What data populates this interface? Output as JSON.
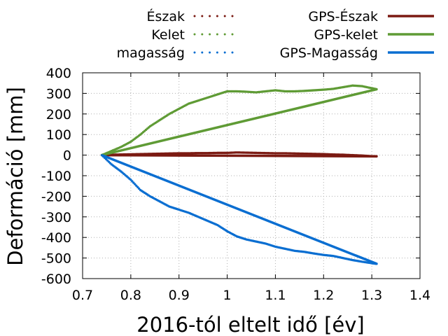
{
  "chart_data": {
    "type": "line",
    "title": "",
    "xlabel": "2016-tól eltelt idő [év]",
    "ylabel": "Deformáció [mm]",
    "xlim": [
      0.7,
      1.4
    ],
    "ylim": [
      -600,
      400
    ],
    "xticks": [
      0.7,
      0.8,
      0.9,
      1,
      1.1,
      1.2,
      1.3,
      1.4
    ],
    "yticks": [
      -600,
      -500,
      -400,
      -300,
      -200,
      -100,
      0,
      100,
      200,
      300,
      400
    ],
    "grid": true,
    "legend_position": "top",
    "series": [
      {
        "name": "Észak",
        "style": "dotted",
        "color": "#7b1a12",
        "x": [
          0.74,
          0.76,
          0.78,
          0.8,
          0.82,
          0.84,
          0.86,
          0.88,
          0.9,
          0.92,
          0.94,
          0.96,
          0.98,
          1.0,
          1.02,
          1.04,
          1.06,
          1.08,
          1.1,
          1.12,
          1.14,
          1.16,
          1.18,
          1.2,
          1.22,
          1.24,
          1.26,
          1.28,
          1.3,
          1.31
        ],
        "y": [
          0,
          2,
          3,
          4,
          5,
          6,
          7,
          8,
          9,
          9,
          10,
          10,
          11,
          11,
          13,
          12,
          11,
          10,
          9,
          9,
          8,
          7,
          6,
          5,
          3,
          2,
          0,
          -2,
          -5,
          -6
        ]
      },
      {
        "name": "Kelet",
        "style": "dotted",
        "color": "#5f9b35",
        "x": [
          0.74,
          0.76,
          0.78,
          0.8,
          0.82,
          0.84,
          0.86,
          0.88,
          0.9,
          0.92,
          0.94,
          0.96,
          0.98,
          1.0,
          1.02,
          1.04,
          1.06,
          1.08,
          1.1,
          1.12,
          1.14,
          1.16,
          1.18,
          1.2,
          1.22,
          1.24,
          1.26,
          1.28,
          1.3,
          1.31
        ],
        "y": [
          0,
          20,
          40,
          65,
          100,
          140,
          170,
          200,
          225,
          250,
          265,
          280,
          295,
          310,
          310,
          308,
          305,
          310,
          315,
          310,
          310,
          312,
          315,
          318,
          322,
          330,
          338,
          335,
          325,
          320
        ]
      },
      {
        "name": "magasság",
        "style": "dotted",
        "color": "#0a6ed1",
        "x": [
          0.74,
          0.76,
          0.78,
          0.8,
          0.82,
          0.84,
          0.86,
          0.88,
          0.9,
          0.92,
          0.94,
          0.96,
          0.98,
          1.0,
          1.02,
          1.04,
          1.06,
          1.08,
          1.1,
          1.12,
          1.14,
          1.16,
          1.18,
          1.2,
          1.22,
          1.24,
          1.26,
          1.28,
          1.3,
          1.31
        ],
        "y": [
          0,
          -45,
          -80,
          -120,
          -170,
          -200,
          -225,
          -250,
          -265,
          -280,
          -300,
          -320,
          -340,
          -370,
          -395,
          -410,
          -420,
          -430,
          -445,
          -455,
          -465,
          -470,
          -478,
          -485,
          -490,
          -500,
          -510,
          -518,
          -525,
          -528
        ]
      },
      {
        "name": "GPS-Észak",
        "style": "solid",
        "color": "#7b1a12",
        "x": [
          0.74,
          1.31
        ],
        "y": [
          0,
          -6
        ]
      },
      {
        "name": "GPS-kelet",
        "style": "solid",
        "color": "#5f9b35",
        "x": [
          0.74,
          1.31
        ],
        "y": [
          0,
          320
        ]
      },
      {
        "name": "GPS-Magasság",
        "style": "solid",
        "color": "#0a6ed1",
        "x": [
          0.74,
          1.31
        ],
        "y": [
          0,
          -528
        ]
      }
    ]
  }
}
